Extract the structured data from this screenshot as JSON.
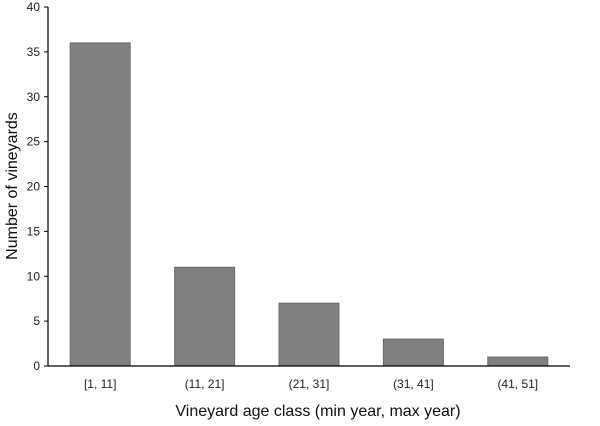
{
  "chart_data": {
    "type": "bar",
    "title": "",
    "categories": [
      "[1, 11]",
      "(11, 21]",
      "(21, 31]",
      "(31, 41]",
      "(41, 51]"
    ],
    "values": [
      36,
      11,
      7,
      3,
      1
    ],
    "xlabel": "Vineyard age class (min year, max year)",
    "ylabel": "Number of vineyards",
    "ylim": [
      0,
      40
    ],
    "yticks": [
      0,
      5,
      10,
      15,
      20,
      25,
      30,
      35,
      40
    ],
    "grid": false,
    "legend": "none",
    "bar_color": "#808080",
    "bar_edge_color": "#6b6b6b",
    "axis_color": "#000000"
  }
}
